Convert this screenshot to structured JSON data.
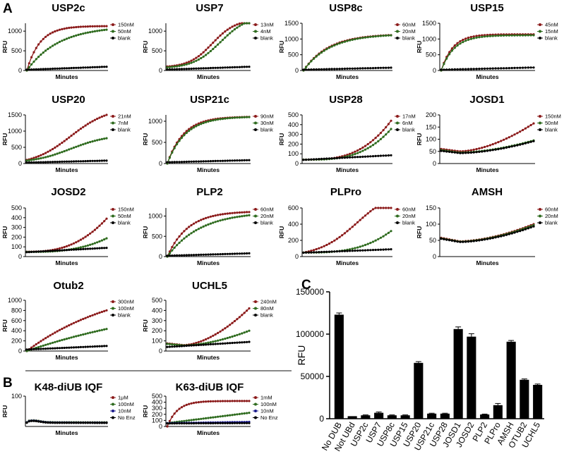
{
  "panel_labels": {
    "a": "A",
    "b": "B",
    "c": "C"
  },
  "chart_data": [
    {
      "type": "line",
      "title": "USP2c",
      "xlabel": "Minutes",
      "ylabel": "RFU",
      "ylim": [
        0,
        1200
      ],
      "yticks": [
        0,
        500,
        1000
      ],
      "legend_loc": "top-right",
      "series": [
        {
          "name": "150nM",
          "color": "#8b1a1a",
          "kind": "hyp",
          "params": [
            1130,
            6
          ]
        },
        {
          "name": "50nM",
          "color": "#2e6b1e",
          "kind": "hyp",
          "params": [
            1130,
            2.5
          ]
        },
        {
          "name": "blank",
          "color": "#000000",
          "kind": "lin",
          "params": [
            20,
            95
          ]
        }
      ]
    },
    {
      "type": "line",
      "title": "USP7",
      "xlabel": "Minutes",
      "ylabel": "RFU",
      "ylim": [
        0,
        1200
      ],
      "yticks": [
        0,
        500,
        1000
      ],
      "legend_loc": "top-right",
      "series": [
        {
          "name": "13nM",
          "color": "#8b1a1a",
          "kind": "sig",
          "params": [
            100,
            1250,
            0.55,
            7
          ]
        },
        {
          "name": "4nM",
          "color": "#2e6b1e",
          "kind": "sig",
          "params": [
            80,
            1250,
            0.65,
            6
          ]
        },
        {
          "name": "blank",
          "color": "#000000",
          "kind": "lin",
          "params": [
            25,
            95
          ]
        }
      ]
    },
    {
      "type": "line",
      "title": "USP8c",
      "xlabel": "Minutes",
      "ylabel": "RFU",
      "ylim": [
        0,
        1500
      ],
      "yticks": [
        0,
        500,
        1000,
        1500
      ],
      "legend_loc": "top-right",
      "series": [
        {
          "name": "60nM",
          "color": "#8b1a1a",
          "kind": "hyp",
          "params": [
            1160,
            3.5
          ]
        },
        {
          "name": "20nM",
          "color": "#2e6b1e",
          "kind": "hyp",
          "params": [
            1160,
            3.3
          ]
        },
        {
          "name": "blank",
          "color": "#000000",
          "kind": "lin",
          "params": [
            25,
            90
          ]
        }
      ]
    },
    {
      "type": "line",
      "title": "USP15",
      "xlabel": "Minutes",
      "ylabel": "RFU",
      "ylim": [
        0,
        1500
      ],
      "yticks": [
        0,
        500,
        1000,
        1500
      ],
      "legend_loc": "top-right",
      "series": [
        {
          "name": "45nM",
          "color": "#8b1a1a",
          "kind": "hyp",
          "params": [
            1150,
            8
          ]
        },
        {
          "name": "15nM",
          "color": "#2e6b1e",
          "kind": "hyp",
          "params": [
            1120,
            7
          ]
        },
        {
          "name": "blank",
          "color": "#000000",
          "kind": "lin",
          "params": [
            25,
            95
          ]
        }
      ]
    },
    {
      "type": "line",
      "title": "USP20",
      "xlabel": "Minutes",
      "ylabel": "RFU",
      "ylim": [
        0,
        1500
      ],
      "yticks": [
        0,
        500,
        1000,
        1500
      ],
      "legend_loc": "top-right",
      "series": [
        {
          "name": "21nM",
          "color": "#8b1a1a",
          "kind": "sig",
          "params": [
            110,
            1500,
            0.55,
            4.2
          ]
        },
        {
          "name": "7nM",
          "color": "#2e6b1e",
          "kind": "sig",
          "params": [
            90,
            780,
            0.55,
            4.2
          ]
        },
        {
          "name": "blank",
          "color": "#000000",
          "kind": "lin",
          "params": [
            30,
            90
          ]
        }
      ]
    },
    {
      "type": "line",
      "title": "USP21c",
      "xlabel": "Minutes",
      "ylabel": "RFU",
      "ylim": [
        0,
        1150
      ],
      "yticks": [
        0,
        500,
        1000
      ],
      "legend_loc": "top-right",
      "series": [
        {
          "name": "90nM",
          "color": "#8b1a1a",
          "kind": "hyp",
          "params": [
            1110,
            5
          ]
        },
        {
          "name": "30nM",
          "color": "#2e6b1e",
          "kind": "hyp",
          "params": [
            1110,
            4.5
          ]
        },
        {
          "name": "blank",
          "color": "#000000",
          "kind": "lin",
          "params": [
            30,
            80
          ]
        }
      ]
    },
    {
      "type": "line",
      "title": "USP28",
      "xlabel": "Minutes",
      "ylabel": "RFU",
      "ylim": [
        0,
        500
      ],
      "yticks": [
        0,
        100,
        200,
        300,
        400,
        500
      ],
      "legend_loc": "top-right",
      "series": [
        {
          "name": "17nM",
          "color": "#8b1a1a",
          "kind": "pow",
          "params": [
            40,
            400,
            3
          ]
        },
        {
          "name": "6nM",
          "color": "#2e6b1e",
          "kind": "pow",
          "params": [
            40,
            315,
            3.2
          ]
        },
        {
          "name": "blank",
          "color": "#000000",
          "kind": "lin",
          "params": [
            38,
            85
          ]
        }
      ]
    },
    {
      "type": "line",
      "title": "JOSD1",
      "xlabel": "Minutes",
      "ylabel": "RFU",
      "ylim": [
        0,
        200
      ],
      "yticks": [
        0,
        50,
        100,
        150,
        200
      ],
      "legend_loc": "top-right",
      "series": [
        {
          "name": "150nM",
          "color": "#8b1a1a",
          "kind": "dip",
          "params": [
            60,
            50,
            165
          ]
        },
        {
          "name": "50nM",
          "color": "#2e6b1e",
          "kind": "dip",
          "params": [
            55,
            45,
            95
          ]
        },
        {
          "name": "blank",
          "color": "#000000",
          "kind": "dip",
          "params": [
            52,
            43,
            92
          ]
        }
      ]
    },
    {
      "type": "line",
      "title": "JOSD2",
      "xlabel": "Minutes",
      "ylabel": "RFU",
      "ylim": [
        0,
        500
      ],
      "yticks": [
        0,
        100,
        200,
        300,
        400,
        500
      ],
      "legend_loc": "top-right",
      "series": [
        {
          "name": "150nM",
          "color": "#8b1a1a",
          "kind": "pow",
          "params": [
            50,
            340,
            2.6
          ]
        },
        {
          "name": "50nM",
          "color": "#2e6b1e",
          "kind": "pow",
          "params": [
            48,
            140,
            2.8
          ]
        },
        {
          "name": "blank",
          "color": "#000000",
          "kind": "lin",
          "params": [
            45,
            90
          ]
        }
      ]
    },
    {
      "type": "line",
      "title": "PLP2",
      "xlabel": "Minutes",
      "ylabel": "RFU",
      "ylim": [
        0,
        1200
      ],
      "yticks": [
        0,
        500,
        1000
      ],
      "legend_loc": "top-right",
      "series": [
        {
          "name": "60nM",
          "color": "#8b1a1a",
          "kind": "hyp",
          "params": [
            1120,
            4
          ]
        },
        {
          "name": "20nM",
          "color": "#2e6b1e",
          "kind": "hyp",
          "params": [
            1110,
            2.5
          ]
        },
        {
          "name": "blank",
          "color": "#000000",
          "kind": "lin",
          "params": [
            20,
            80
          ]
        }
      ]
    },
    {
      "type": "line",
      "title": "PLPro",
      "xlabel": "Minutes",
      "ylabel": "RFU",
      "ylim": [
        0,
        600
      ],
      "yticks": [
        0,
        200,
        400,
        600
      ],
      "legend_loc": "top-right",
      "series": [
        {
          "name": "60nM",
          "color": "#8b1a1a",
          "kind": "sig",
          "params": [
            50,
            720,
            0.62,
            4.5
          ]
        },
        {
          "name": "20nM",
          "color": "#2e6b1e",
          "kind": "pow",
          "params": [
            50,
            265,
            3
          ]
        },
        {
          "name": "blank",
          "color": "#000000",
          "kind": "lin",
          "params": [
            48,
            90
          ]
        }
      ]
    },
    {
      "type": "line",
      "title": "AMSH",
      "xlabel": "Minutes",
      "ylabel": "RFU",
      "ylim": [
        0,
        150
      ],
      "yticks": [
        0,
        50,
        100,
        150
      ],
      "legend_loc": "top-right",
      "series": [
        {
          "name": "60nM",
          "color": "#8b1a1a",
          "kind": "dip",
          "params": [
            58,
            47,
            100
          ]
        },
        {
          "name": "20nM",
          "color": "#2e6b1e",
          "kind": "dip",
          "params": [
            56,
            46,
            97
          ]
        },
        {
          "name": "blank",
          "color": "#000000",
          "kind": "dip",
          "params": [
            55,
            45,
            93
          ]
        }
      ]
    },
    {
      "type": "line",
      "title": "Otub2",
      "xlabel": "Minutes",
      "ylabel": "RFU",
      "ylim": [
        0,
        1000
      ],
      "yticks": [
        0,
        200,
        400,
        600,
        800,
        1000
      ],
      "legend_loc": "top-right",
      "series": [
        {
          "name": "300nM",
          "color": "#8b1a1a",
          "kind": "hyp",
          "params": [
            1400,
            0.85
          ]
        },
        {
          "name": "100nM",
          "color": "#2e6b1e",
          "kind": "hyp",
          "params": [
            1200,
            0.45
          ]
        },
        {
          "name": "blank",
          "color": "#000000",
          "kind": "lin",
          "params": [
            30,
            100
          ]
        }
      ]
    },
    {
      "type": "line",
      "title": "UCHL5",
      "xlabel": "Minutes",
      "ylabel": "RFU",
      "ylim": [
        0,
        500
      ],
      "yticks": [
        0,
        100,
        200,
        300,
        400,
        500
      ],
      "legend_loc": "top-right",
      "series": [
        {
          "name": "240nM",
          "color": "#8b1a1a",
          "kind": "dip",
          "params": [
            75,
            58,
            420
          ]
        },
        {
          "name": "80nM",
          "color": "#2e6b1e",
          "kind": "dip",
          "params": [
            70,
            55,
            200
          ]
        },
        {
          "name": "blank",
          "color": "#000000",
          "kind": "lin",
          "params": [
            40,
            90
          ]
        }
      ]
    },
    {
      "type": "line",
      "title": "K48-diUB IQF",
      "xlabel": "Minutes",
      "ylabel": "RFU",
      "ylim": [
        0,
        100
      ],
      "yticks": [
        100
      ],
      "legend_loc": "top-right",
      "series": [
        {
          "name": "1μM",
          "color": "#8b1a1a",
          "kind": "hump",
          "params": [
            14,
            20,
            12
          ]
        },
        {
          "name": "100nM",
          "color": "#2e6b1e",
          "kind": "hump",
          "params": [
            14,
            20,
            12
          ]
        },
        {
          "name": "10nM",
          "color": "#1a1a8b",
          "kind": "hump",
          "params": [
            13,
            19,
            11
          ]
        },
        {
          "name": "No Enz",
          "color": "#000000",
          "kind": "hump",
          "params": [
            12,
            18,
            11
          ]
        }
      ]
    },
    {
      "type": "line",
      "title": "K63-diUB IQF",
      "xlabel": "Minutes",
      "ylabel": "RFU",
      "ylim": [
        0,
        500
      ],
      "yticks": [
        0,
        100,
        200,
        300,
        400,
        500
      ],
      "legend_loc": "top-right",
      "series": [
        {
          "name": "1mM",
          "color": "#8b1a1a",
          "kind": "hyp",
          "params": [
            420,
            8
          ]
        },
        {
          "name": "100nM",
          "color": "#2e6b1e",
          "kind": "lin",
          "params": [
            55,
            225
          ]
        },
        {
          "name": "10nM",
          "color": "#1a1a8b",
          "kind": "lin",
          "params": [
            55,
            75
          ]
        },
        {
          "name": "No Enz",
          "color": "#000000",
          "kind": "lin",
          "params": [
            50,
            55
          ]
        }
      ]
    },
    {
      "type": "bar",
      "title": "",
      "xlabel": "",
      "ylabel": "RFU",
      "ylim": [
        0,
        150000
      ],
      "yticks": [
        0,
        50000,
        100000,
        150000
      ],
      "categories": [
        "No DUB",
        "Not UBd",
        "USP2c",
        "USP7",
        "USP8c",
        "USP15",
        "USP20",
        "USP21c",
        "USP28",
        "JOSD1",
        "JOSD2",
        "PLP2",
        "PLPro",
        "AMSH",
        "OTUB2",
        "UCHL5"
      ],
      "values": [
        123000,
        3000,
        4000,
        7000,
        4000,
        4000,
        66000,
        6000,
        6000,
        106000,
        97000,
        5000,
        16000,
        91000,
        46000,
        40000
      ],
      "errors": [
        2000,
        0,
        500,
        1000,
        500,
        500,
        1500,
        500,
        500,
        2500,
        3500,
        500,
        2000,
        1500,
        1000,
        1000
      ]
    }
  ]
}
